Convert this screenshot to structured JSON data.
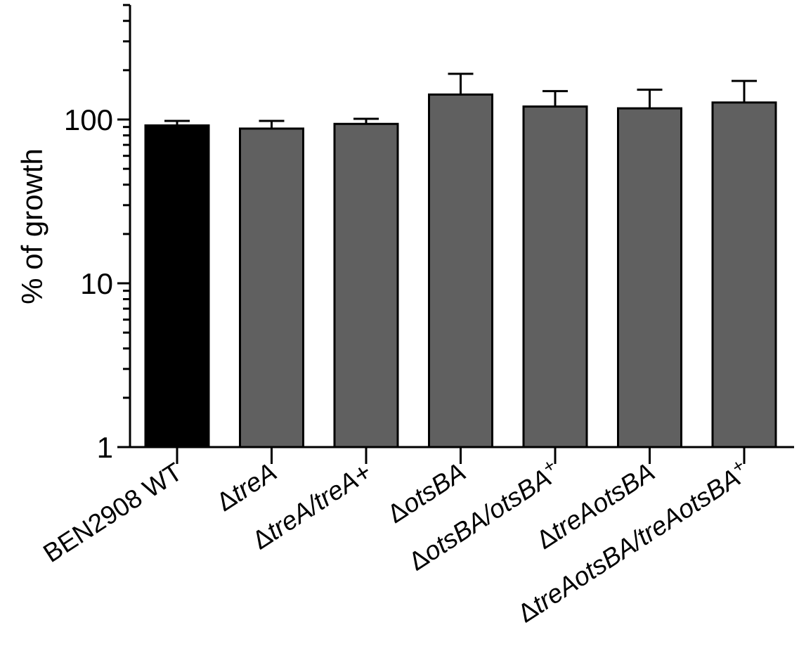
{
  "chart_data": {
    "type": "bar",
    "title": "",
    "xlabel": "",
    "ylabel": "% of growth",
    "yscale": "log",
    "ylim": [
      1,
      500
    ],
    "yticks": [
      "1",
      "10",
      "100"
    ],
    "grid": false,
    "legend": "none",
    "categories": [
      "BEN2908 WT",
      "ΔtreA",
      "ΔtreA/treA+",
      "ΔotsBA",
      "ΔotsBA/otsBA+",
      "ΔtreAotsBA",
      "ΔtreAotsBA/treAotsBA+"
    ],
    "category_labels": [
      [
        {
          "t": "BEN2908 WT",
          "i": false
        }
      ],
      [
        {
          "t": "Δ",
          "i": false
        },
        {
          "t": "treA",
          "i": true
        }
      ],
      [
        {
          "t": "Δ",
          "i": false
        },
        {
          "t": "treA/treA+",
          "i": true
        }
      ],
      [
        {
          "t": "Δ",
          "i": false
        },
        {
          "t": "otsBA",
          "i": true
        }
      ],
      [
        {
          "t": "Δ",
          "i": false
        },
        {
          "t": "otsBA/otsBA",
          "i": true
        },
        {
          "t": "+",
          "i": false,
          "sup": true
        }
      ],
      [
        {
          "t": "Δ",
          "i": false
        },
        {
          "t": "treAotsBA",
          "i": true
        }
      ],
      [
        {
          "t": "Δ",
          "i": false
        },
        {
          "t": "treAotsBA/treAotsBA",
          "i": true
        },
        {
          "t": "+",
          "i": false,
          "sup": true
        }
      ]
    ],
    "values": [
      92,
      88,
      94,
      142,
      120,
      117,
      127
    ],
    "error_upper": [
      98,
      98,
      101,
      190,
      149,
      152,
      172
    ],
    "colors": [
      "#000000",
      "#606060",
      "#606060",
      "#606060",
      "#606060",
      "#606060",
      "#606060"
    ]
  }
}
